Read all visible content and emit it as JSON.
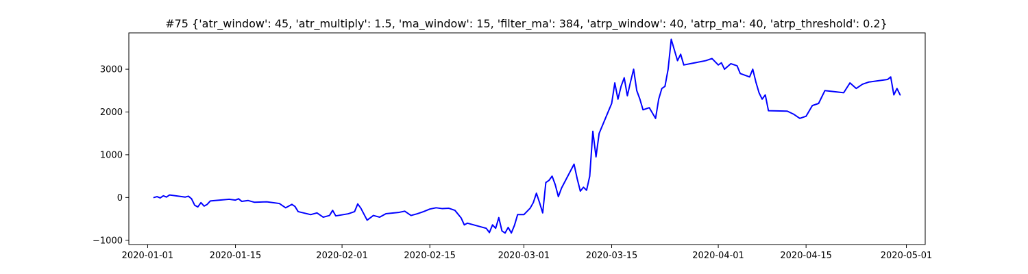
{
  "chart_data": {
    "type": "line",
    "title": "#75 {'atr_window': 45, 'atr_multiply': 1.5, 'ma_window': 15, 'filter_ma': 384, 'atrp_window': 40, 'atrp_ma': 40, 'atrp_threshold': 0.2}",
    "xlabel": "",
    "ylabel": "",
    "x_axis_type": "date",
    "xlim": [
      "2019-12-29",
      "2020-05-04"
    ],
    "ylim": [
      -1100,
      3850
    ],
    "x_ticks": [
      {
        "date": "2020-01-01",
        "label": "2020-01-01"
      },
      {
        "date": "2020-01-15",
        "label": "2020-01-15"
      },
      {
        "date": "2020-02-01",
        "label": "2020-02-01"
      },
      {
        "date": "2020-02-15",
        "label": "2020-02-15"
      },
      {
        "date": "2020-03-01",
        "label": "2020-03-01"
      },
      {
        "date": "2020-03-15",
        "label": "2020-03-15"
      },
      {
        "date": "2020-04-01",
        "label": "2020-04-01"
      },
      {
        "date": "2020-04-15",
        "label": "2020-04-15"
      },
      {
        "date": "2020-05-01",
        "label": "2020-05-01"
      }
    ],
    "y_ticks": [
      {
        "value": -1000,
        "label": "−1000"
      },
      {
        "value": 0,
        "label": "0"
      },
      {
        "value": 1000,
        "label": "1000"
      },
      {
        "value": 2000,
        "label": "2000"
      },
      {
        "value": 3000,
        "label": "3000"
      }
    ],
    "grid": false,
    "series": [
      {
        "color": "#0000ff",
        "points": [
          [
            "2020-01-02",
            0
          ],
          [
            "2020-01-02 12:00",
            20
          ],
          [
            "2020-01-03",
            -10
          ],
          [
            "2020-01-03 12:00",
            40
          ],
          [
            "2020-01-04",
            10
          ],
          [
            "2020-01-04 12:00",
            60
          ],
          [
            "2020-01-06",
            30
          ],
          [
            "2020-01-07",
            10
          ],
          [
            "2020-01-07 12:00",
            30
          ],
          [
            "2020-01-08",
            -30
          ],
          [
            "2020-01-08 12:00",
            -180
          ],
          [
            "2020-01-09",
            -220
          ],
          [
            "2020-01-09 12:00",
            -120
          ],
          [
            "2020-01-10",
            -200
          ],
          [
            "2020-01-10 12:00",
            -160
          ],
          [
            "2020-01-11",
            -80
          ],
          [
            "2020-01-14",
            -40
          ],
          [
            "2020-01-15",
            -60
          ],
          [
            "2020-01-15 12:00",
            -30
          ],
          [
            "2020-01-16",
            -90
          ],
          [
            "2020-01-17",
            -70
          ],
          [
            "2020-01-18",
            -110
          ],
          [
            "2020-01-20",
            -100
          ],
          [
            "2020-01-22",
            -140
          ],
          [
            "2020-01-23",
            -240
          ],
          [
            "2020-01-24",
            -160
          ],
          [
            "2020-01-24 12:00",
            -210
          ],
          [
            "2020-01-25",
            -330
          ],
          [
            "2020-01-27",
            -400
          ],
          [
            "2020-01-28",
            -360
          ],
          [
            "2020-01-29",
            -460
          ],
          [
            "2020-01-30",
            -420
          ],
          [
            "2020-01-30 12:00",
            -300
          ],
          [
            "2020-01-31",
            -430
          ],
          [
            "2020-02-02",
            -380
          ],
          [
            "2020-02-03",
            -330
          ],
          [
            "2020-02-03 12:00",
            -150
          ],
          [
            "2020-02-04",
            -250
          ],
          [
            "2020-02-05",
            -530
          ],
          [
            "2020-02-06",
            -420
          ],
          [
            "2020-02-07",
            -460
          ],
          [
            "2020-02-08",
            -380
          ],
          [
            "2020-02-10",
            -350
          ],
          [
            "2020-02-11",
            -320
          ],
          [
            "2020-02-12",
            -420
          ],
          [
            "2020-02-13",
            -380
          ],
          [
            "2020-02-14",
            -330
          ],
          [
            "2020-02-15",
            -270
          ],
          [
            "2020-02-16",
            -240
          ],
          [
            "2020-02-17",
            -260
          ],
          [
            "2020-02-18",
            -250
          ],
          [
            "2020-02-19",
            -300
          ],
          [
            "2020-02-20",
            -480
          ],
          [
            "2020-02-20 12:00",
            -640
          ],
          [
            "2020-02-21",
            -600
          ],
          [
            "2020-02-23",
            -680
          ],
          [
            "2020-02-24",
            -720
          ],
          [
            "2020-02-24 12:00",
            -820
          ],
          [
            "2020-02-25",
            -640
          ],
          [
            "2020-02-25 12:00",
            -720
          ],
          [
            "2020-02-26",
            -470
          ],
          [
            "2020-02-26 12:00",
            -780
          ],
          [
            "2020-02-27",
            -830
          ],
          [
            "2020-02-27 12:00",
            -700
          ],
          [
            "2020-02-28",
            -830
          ],
          [
            "2020-02-28 12:00",
            -650
          ],
          [
            "2020-02-29",
            -400
          ],
          [
            "2020-03-01",
            -400
          ],
          [
            "2020-03-02",
            -250
          ],
          [
            "2020-03-02 12:00",
            -120
          ],
          [
            "2020-03-03",
            100
          ],
          [
            "2020-03-03 12:00",
            -120
          ],
          [
            "2020-03-04",
            -360
          ],
          [
            "2020-03-04 12:00",
            350
          ],
          [
            "2020-03-05",
            400
          ],
          [
            "2020-03-05 12:00",
            500
          ],
          [
            "2020-03-06",
            300
          ],
          [
            "2020-03-06 12:00",
            20
          ],
          [
            "2020-03-07",
            220
          ],
          [
            "2020-03-08",
            500
          ],
          [
            "2020-03-09",
            780
          ],
          [
            "2020-03-09 12:00",
            440
          ],
          [
            "2020-03-10",
            150
          ],
          [
            "2020-03-10 12:00",
            240
          ],
          [
            "2020-03-11",
            170
          ],
          [
            "2020-03-11 12:00",
            500
          ],
          [
            "2020-03-12",
            1550
          ],
          [
            "2020-03-12 12:00",
            950
          ],
          [
            "2020-03-13",
            1500
          ],
          [
            "2020-03-15",
            2200
          ],
          [
            "2020-03-15 12:00",
            2680
          ],
          [
            "2020-03-16",
            2300
          ],
          [
            "2020-03-16 12:00",
            2600
          ],
          [
            "2020-03-17",
            2800
          ],
          [
            "2020-03-17 12:00",
            2380
          ],
          [
            "2020-03-18",
            2700
          ],
          [
            "2020-03-18 12:00",
            3000
          ],
          [
            "2020-03-19",
            2500
          ],
          [
            "2020-03-19 12:00",
            2300
          ],
          [
            "2020-03-20",
            2050
          ],
          [
            "2020-03-21",
            2100
          ],
          [
            "2020-03-22",
            1850
          ],
          [
            "2020-03-22 12:00",
            2300
          ],
          [
            "2020-03-23",
            2550
          ],
          [
            "2020-03-23 12:00",
            2600
          ],
          [
            "2020-03-24",
            3000
          ],
          [
            "2020-03-24 12:00",
            3700
          ],
          [
            "2020-03-25",
            3450
          ],
          [
            "2020-03-25 12:00",
            3200
          ],
          [
            "2020-03-26",
            3350
          ],
          [
            "2020-03-26 12:00",
            3100
          ],
          [
            "2020-03-30",
            3200
          ],
          [
            "2020-03-31",
            3250
          ],
          [
            "2020-04-01",
            3100
          ],
          [
            "2020-04-01 12:00",
            3150
          ],
          [
            "2020-04-02",
            3000
          ],
          [
            "2020-04-03",
            3130
          ],
          [
            "2020-04-04",
            3080
          ],
          [
            "2020-04-04 12:00",
            2900
          ],
          [
            "2020-04-06",
            2820
          ],
          [
            "2020-04-06 12:00",
            3000
          ],
          [
            "2020-04-07",
            2700
          ],
          [
            "2020-04-07 12:00",
            2450
          ],
          [
            "2020-04-08",
            2300
          ],
          [
            "2020-04-08 12:00",
            2400
          ],
          [
            "2020-04-09",
            2030
          ],
          [
            "2020-04-12",
            2020
          ],
          [
            "2020-04-13",
            1950
          ],
          [
            "2020-04-14",
            1850
          ],
          [
            "2020-04-15",
            1900
          ],
          [
            "2020-04-16",
            2150
          ],
          [
            "2020-04-17",
            2200
          ],
          [
            "2020-04-18",
            2500
          ],
          [
            "2020-04-21",
            2450
          ],
          [
            "2020-04-22",
            2680
          ],
          [
            "2020-04-23",
            2550
          ],
          [
            "2020-04-24",
            2650
          ],
          [
            "2020-04-25",
            2700
          ],
          [
            "2020-04-28",
            2760
          ],
          [
            "2020-04-28 12:00",
            2820
          ],
          [
            "2020-04-29",
            2400
          ],
          [
            "2020-04-29 12:00",
            2550
          ],
          [
            "2020-04-30",
            2400
          ]
        ]
      }
    ]
  }
}
